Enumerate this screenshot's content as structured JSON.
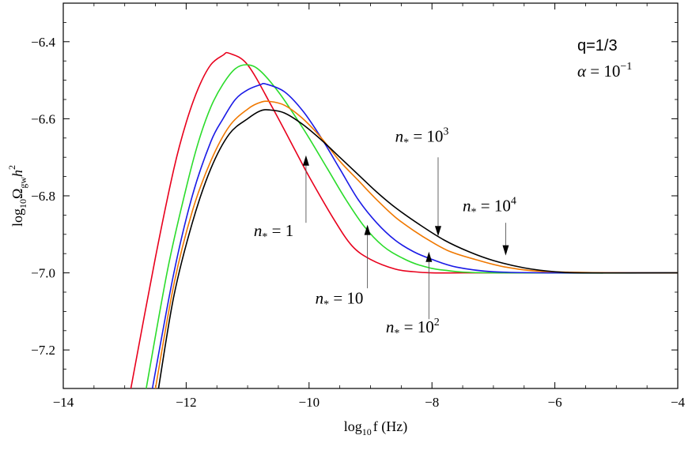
{
  "chart_data": {
    "type": "line",
    "title": "",
    "xlabel": {
      "base": "log",
      "sub": "10",
      "rest": "f (Hz)"
    },
    "ylabel": {
      "base": "log",
      "sub": "10",
      "omega": "Ω",
      "omega_sub": "gw",
      "h": "h",
      "h_sup": "2"
    },
    "xlim": [
      -14,
      -4
    ],
    "ylim": [
      -7.3,
      -6.3
    ],
    "xticks": [
      -14,
      -12,
      -10,
      -8,
      -6,
      -4
    ],
    "yticks": [
      -6.4,
      -6.6,
      -6.8,
      -7.0,
      -7.2
    ],
    "xtick_labels": [
      "−14",
      "−12",
      "−10",
      "−8",
      "−6",
      "−4"
    ],
    "ytick_labels": [
      "−6.4",
      "−6.6",
      "−6.8",
      "−7.0",
      "−7.2"
    ],
    "params": {
      "q_text": "q=1/3",
      "alpha_symbol": "α",
      "alpha_eq": " = 10",
      "alpha_exp": "−1"
    },
    "series": [
      {
        "name": "n* = 1",
        "color": "#e8001c",
        "x": [
          -12.9,
          -12.5,
          -12.2,
          -12.0,
          -11.8,
          -11.6,
          -11.4,
          -11.3,
          -11.0,
          -10.6,
          -10.2,
          -10.0,
          -9.6,
          -9.3,
          -9.0,
          -8.6,
          -8.3,
          -8.0,
          -7.5,
          -6.5,
          -4.0
        ],
        "y": [
          -7.3,
          -6.96,
          -6.73,
          -6.61,
          -6.52,
          -6.46,
          -6.435,
          -6.43,
          -6.46,
          -6.57,
          -6.69,
          -6.75,
          -6.86,
          -6.93,
          -6.965,
          -6.99,
          -6.997,
          -7.0,
          -7.0,
          -7.0,
          -7.0
        ]
      },
      {
        "name": "n* = 10",
        "color": "#2bdc2b",
        "x": [
          -12.65,
          -12.3,
          -12.0,
          -11.8,
          -11.6,
          -11.4,
          -11.2,
          -11.0,
          -10.8,
          -10.5,
          -10.2,
          -10.0,
          -9.7,
          -9.4,
          -9.1,
          -8.8,
          -8.5,
          -8.2,
          -7.8,
          -7.0,
          -4.0
        ],
        "y": [
          -7.3,
          -6.99,
          -6.78,
          -6.66,
          -6.57,
          -6.51,
          -6.47,
          -6.46,
          -6.475,
          -6.53,
          -6.6,
          -6.65,
          -6.73,
          -6.81,
          -6.88,
          -6.93,
          -6.96,
          -6.98,
          -6.993,
          -7.0,
          -7.0
        ]
      },
      {
        "name": "n* = 10^2",
        "color": "#1a1ae6",
        "x": [
          -12.55,
          -12.2,
          -11.9,
          -11.6,
          -11.4,
          -11.2,
          -11.0,
          -10.8,
          -10.7,
          -10.4,
          -10.1,
          -9.8,
          -9.5,
          -9.2,
          -8.9,
          -8.6,
          -8.3,
          -8.0,
          -7.6,
          -7.0,
          -6.0,
          -4.0
        ],
        "y": [
          -7.3,
          -7.0,
          -6.8,
          -6.66,
          -6.6,
          -6.55,
          -6.525,
          -6.512,
          -6.51,
          -6.53,
          -6.58,
          -6.65,
          -6.73,
          -6.81,
          -6.87,
          -6.915,
          -6.945,
          -6.965,
          -6.985,
          -6.997,
          -7.0,
          -7.0
        ]
      },
      {
        "name": "n* = 10^3",
        "color": "#f07800",
        "x": [
          -12.5,
          -12.2,
          -11.9,
          -11.6,
          -11.3,
          -11.0,
          -10.8,
          -10.65,
          -10.4,
          -10.1,
          -9.8,
          -9.5,
          -9.2,
          -8.9,
          -8.6,
          -8.3,
          -8.0,
          -7.7,
          -7.3,
          -6.8,
          -6.2,
          -5.0,
          -4.0
        ],
        "y": [
          -7.3,
          -7.03,
          -6.84,
          -6.71,
          -6.62,
          -6.575,
          -6.558,
          -6.555,
          -6.565,
          -6.6,
          -6.65,
          -6.71,
          -6.76,
          -6.81,
          -6.855,
          -6.89,
          -6.92,
          -6.945,
          -6.965,
          -6.985,
          -6.996,
          -7.0,
          -7.0
        ]
      },
      {
        "name": "n* = 10^4",
        "color": "#000000",
        "x": [
          -12.45,
          -12.2,
          -11.9,
          -11.6,
          -11.3,
          -11.0,
          -10.8,
          -10.65,
          -10.4,
          -10.1,
          -9.8,
          -9.5,
          -9.2,
          -8.9,
          -8.6,
          -8.2,
          -7.8,
          -7.4,
          -7.0,
          -6.5,
          -6.0,
          -5.5,
          -4.0
        ],
        "y": [
          -7.3,
          -7.06,
          -6.87,
          -6.73,
          -6.64,
          -6.6,
          -6.58,
          -6.577,
          -6.585,
          -6.615,
          -6.655,
          -6.7,
          -6.745,
          -6.79,
          -6.83,
          -6.875,
          -6.915,
          -6.945,
          -6.968,
          -6.987,
          -6.997,
          -7.0,
          -7.0
        ]
      }
    ],
    "annotations": [
      {
        "id": "n1",
        "label_base": "n",
        "label_sub": "*",
        "label_eq": " = 1",
        "label_sup": "",
        "arrow_dir": "up",
        "arrow_x": -10.05,
        "arrow_from_y": -6.87,
        "arrow_to_y": -6.695,
        "text_x": -10.9,
        "text_y": -6.905
      },
      {
        "id": "n10",
        "label_base": "n",
        "label_sub": "*",
        "label_eq": " = 10",
        "label_sup": "",
        "arrow_dir": "up",
        "arrow_x": -9.05,
        "arrow_from_y": -7.04,
        "arrow_to_y": -6.875,
        "text_x": -9.9,
        "text_y": -7.08
      },
      {
        "id": "n100",
        "label_base": "n",
        "label_sub": "*",
        "label_eq": " = 10",
        "label_sup": "2",
        "arrow_dir": "up",
        "arrow_x": -8.05,
        "arrow_from_y": -7.12,
        "arrow_to_y": -6.945,
        "text_x": -8.75,
        "text_y": -7.155
      },
      {
        "id": "n1000",
        "label_base": "n",
        "label_sub": "*",
        "label_eq": " = 10",
        "label_sup": "3",
        "arrow_dir": "down",
        "arrow_x": -7.9,
        "arrow_from_y": -6.7,
        "arrow_to_y": -6.905,
        "text_x": -8.6,
        "text_y": -6.66
      },
      {
        "id": "n10000",
        "label_base": "n",
        "label_sub": "*",
        "label_eq": " = 10",
        "label_sup": "4",
        "arrow_dir": "down",
        "arrow_x": -6.8,
        "arrow_from_y": -6.87,
        "arrow_to_y": -6.955,
        "text_x": -7.5,
        "text_y": -6.84
      }
    ]
  }
}
